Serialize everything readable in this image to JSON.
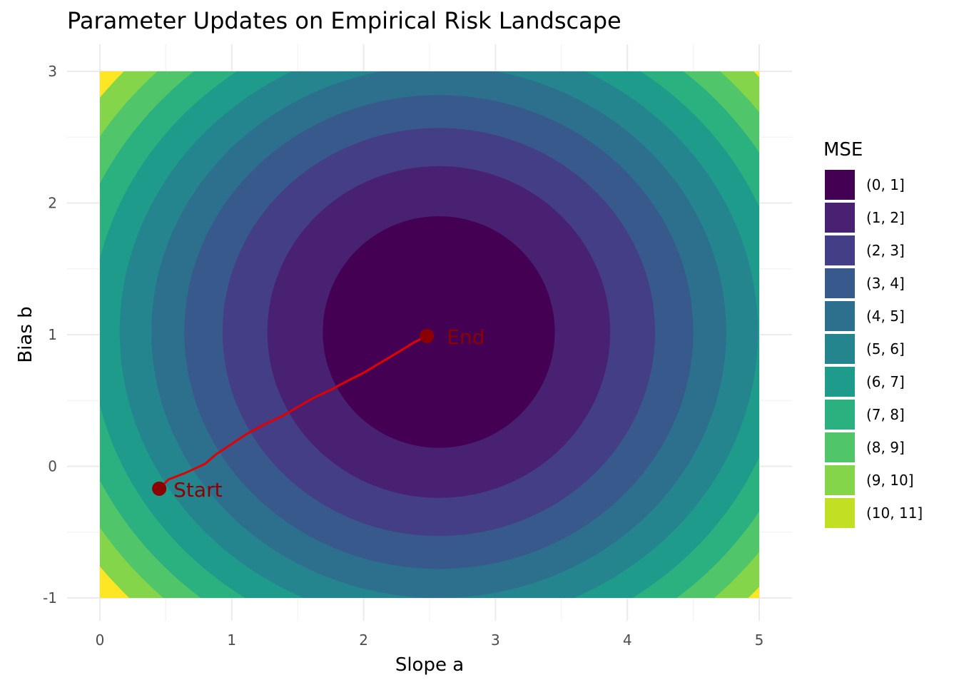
{
  "chart_data": {
    "type": "contour",
    "title": "Parameter Updates on Empirical Risk Landscape",
    "xlabel": "Slope a",
    "ylabel": "Bias b",
    "xlim": [
      0,
      5
    ],
    "ylim": [
      -1,
      3
    ],
    "x_ticks": [
      0,
      1,
      2,
      3,
      4,
      5
    ],
    "y_ticks": [
      -1,
      0,
      1,
      2,
      3
    ],
    "grid": true,
    "landscape": {
      "minimum": [
        2.57,
        1.02
      ],
      "contour_step": 1,
      "contour_radii": [
        [
          0.88,
          0.88
        ],
        [
          1.3,
          1.26
        ],
        [
          1.64,
          1.55
        ],
        [
          1.93,
          1.8
        ],
        [
          2.18,
          2.02
        ],
        [
          2.42,
          2.23
        ],
        [
          2.64,
          2.43
        ],
        [
          2.85,
          2.61
        ],
        [
          3.04,
          2.78
        ],
        [
          3.23,
          2.94
        ]
      ]
    },
    "legend": {
      "title": "MSE",
      "position": "right",
      "entries": [
        {
          "label": "(0, 1]",
          "color": "#440154"
        },
        {
          "label": "(1, 2]",
          "color": "#482173"
        },
        {
          "label": "(2, 3]",
          "color": "#433E85"
        },
        {
          "label": "(3, 4]",
          "color": "#38598C"
        },
        {
          "label": "(4, 5]",
          "color": "#2D708E"
        },
        {
          "label": "(5, 6]",
          "color": "#25858E"
        },
        {
          "label": "(6, 7]",
          "color": "#1E9B8A"
        },
        {
          "label": "(7, 8]",
          "color": "#2BB07F"
        },
        {
          "label": "(8, 9]",
          "color": "#51C56A"
        },
        {
          "label": "(9, 10]",
          "color": "#85D54A"
        },
        {
          "label": "(10, 11]",
          "color": "#C2DF23"
        }
      ],
      "extra_color": "#FDE725"
    },
    "path": {
      "color": "#e00000",
      "points": [
        [
          0.45,
          -0.17
        ],
        [
          0.52,
          -0.1
        ],
        [
          0.65,
          -0.05
        ],
        [
          0.8,
          0.02
        ],
        [
          0.88,
          0.09
        ],
        [
          1.0,
          0.17
        ],
        [
          1.12,
          0.25
        ],
        [
          1.25,
          0.32
        ],
        [
          1.38,
          0.38
        ],
        [
          1.5,
          0.45
        ],
        [
          1.62,
          0.52
        ],
        [
          1.75,
          0.58
        ],
        [
          1.88,
          0.65
        ],
        [
          2.0,
          0.71
        ],
        [
          2.1,
          0.77
        ],
        [
          2.2,
          0.83
        ],
        [
          2.3,
          0.89
        ],
        [
          2.38,
          0.94
        ],
        [
          2.44,
          0.97
        ],
        [
          2.48,
          0.99
        ]
      ],
      "start": {
        "x": 0.45,
        "y": -0.17,
        "label": "Start",
        "color": "#8b0000"
      },
      "end": {
        "x": 2.48,
        "y": 0.99,
        "label": "End",
        "color": "#8b0000"
      }
    }
  }
}
